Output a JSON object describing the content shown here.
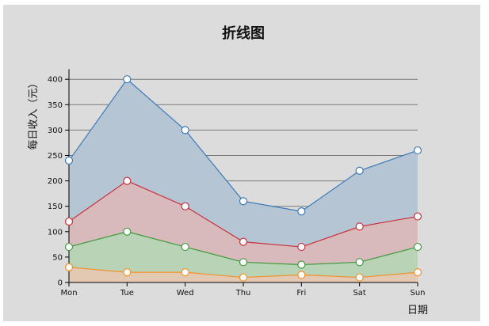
{
  "chart_data": {
    "type": "area",
    "title": "折线图",
    "xlabel": "日期",
    "ylabel": "每日收入（元）",
    "categories": [
      "Mon",
      "Tue",
      "Wed",
      "Thu",
      "Fri",
      "Sat",
      "Sun"
    ],
    "ylim": [
      0,
      420
    ],
    "yticks": [
      0,
      50,
      100,
      150,
      200,
      250,
      300,
      350,
      400
    ],
    "grid": true,
    "stacked": false,
    "series": [
      {
        "values": [
          240,
          400,
          300,
          160,
          140,
          220,
          260
        ],
        "line_color": "#3c7ab8",
        "fill_color": "#b5c5d4"
      },
      {
        "values": [
          120,
          200,
          150,
          80,
          70,
          110,
          130
        ],
        "line_color": "#c8323c",
        "fill_color": "#d8b9bc"
      },
      {
        "values": [
          70,
          100,
          70,
          40,
          35,
          40,
          70
        ],
        "line_color": "#3f9a3b",
        "fill_color": "#b9d3b7"
      },
      {
        "values": [
          30,
          20,
          20,
          10,
          15,
          10,
          20
        ],
        "line_color": "#f0922a",
        "fill_color": "#e3c8b2"
      }
    ]
  }
}
